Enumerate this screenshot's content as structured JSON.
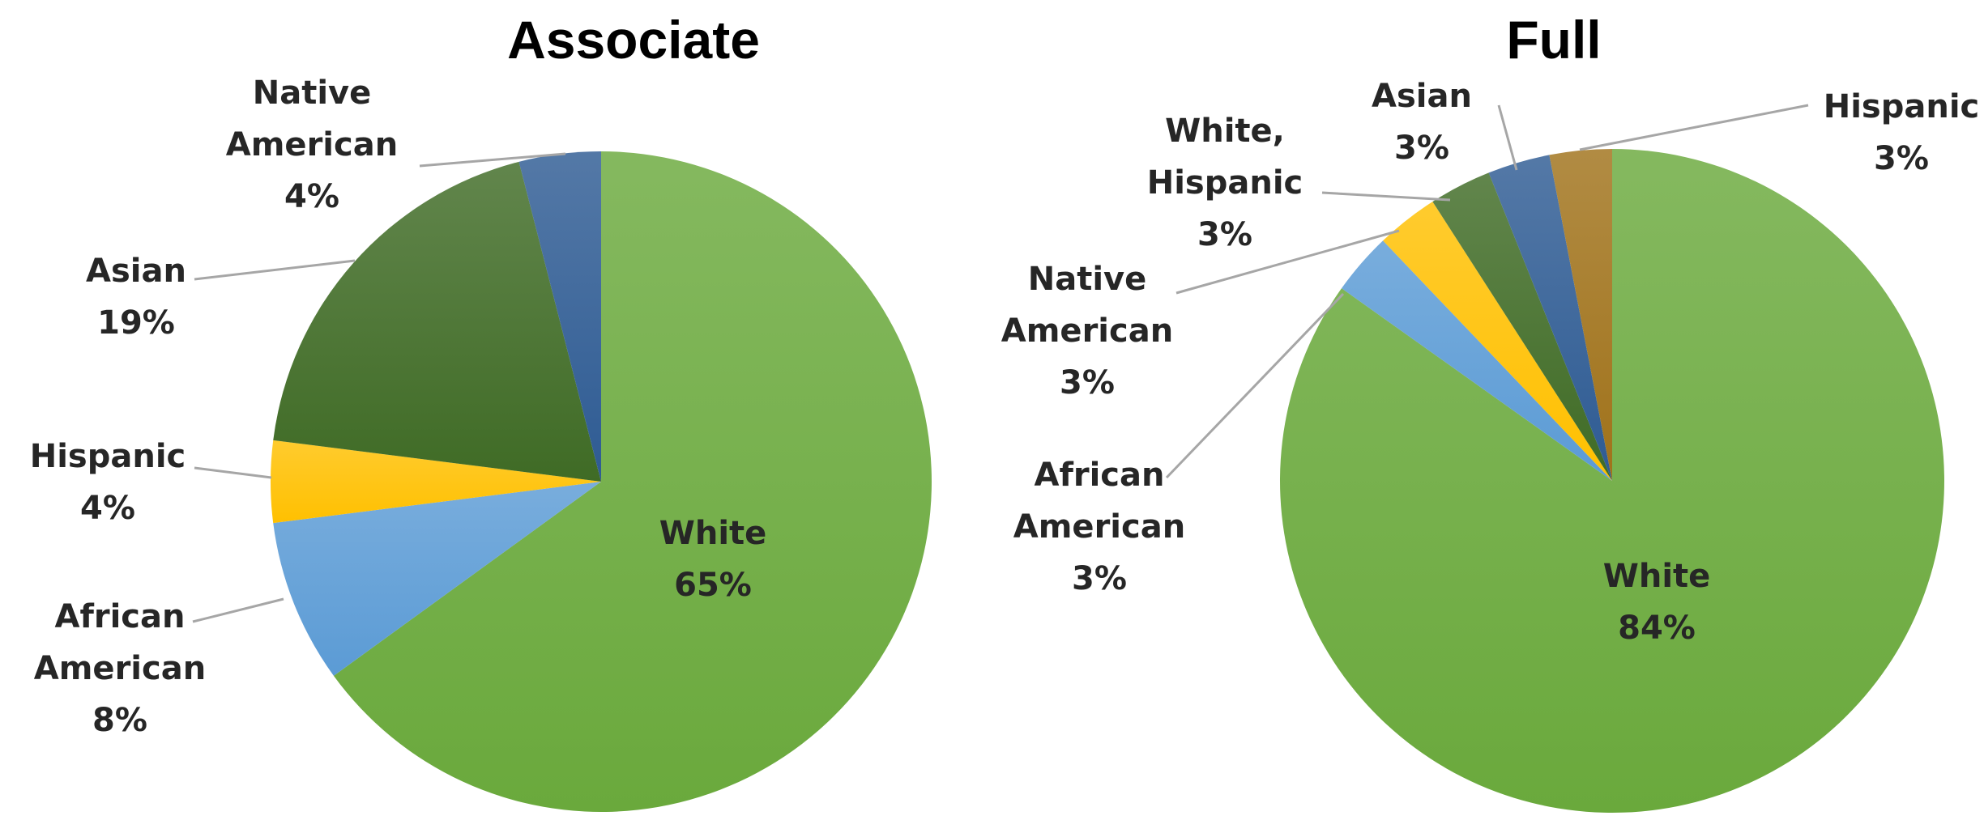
{
  "chart_data": [
    {
      "type": "pie",
      "title": "Associate",
      "slices": [
        {
          "name": "White",
          "value": 65,
          "label": [
            "White",
            "65%"
          ],
          "color": "#6aa93c"
        },
        {
          "name": "African American",
          "value": 8,
          "label": [
            "African",
            "American",
            "8%"
          ],
          "color": "#5b9bd5"
        },
        {
          "name": "Hispanic",
          "value": 4,
          "label": [
            "Hispanic",
            "4%"
          ],
          "color": "#ffc000"
        },
        {
          "name": "Asian",
          "value": 19,
          "label": [
            "Asian",
            "19%"
          ],
          "color": "#3f6b25"
        },
        {
          "name": "Native American",
          "value": 4,
          "label": [
            "Native",
            "American",
            "4%"
          ],
          "color": "#2e5b93"
        }
      ]
    },
    {
      "type": "pie",
      "title": "Full",
      "slices": [
        {
          "name": "White",
          "value": 84,
          "label": [
            "White",
            "84%"
          ],
          "color": "#6aa93c"
        },
        {
          "name": "African American",
          "value": 3,
          "label": [
            "African",
            "American",
            "3%"
          ],
          "color": "#5b9bd5"
        },
        {
          "name": "Native American",
          "value": 3,
          "label": [
            "Native",
            "American",
            "3%"
          ],
          "color": "#ffc000"
        },
        {
          "name": "White, Hispanic",
          "value": 3,
          "label": [
            "White,",
            "Hispanic",
            "3%"
          ],
          "color": "#3f6b25"
        },
        {
          "name": "Asian",
          "value": 3,
          "label": [
            "Asian",
            "3%"
          ],
          "color": "#2e5b93"
        },
        {
          "name": "Hispanic",
          "value": 3,
          "label": [
            "Hispanic",
            "3%"
          ],
          "color": "#a0721a"
        }
      ]
    }
  ]
}
